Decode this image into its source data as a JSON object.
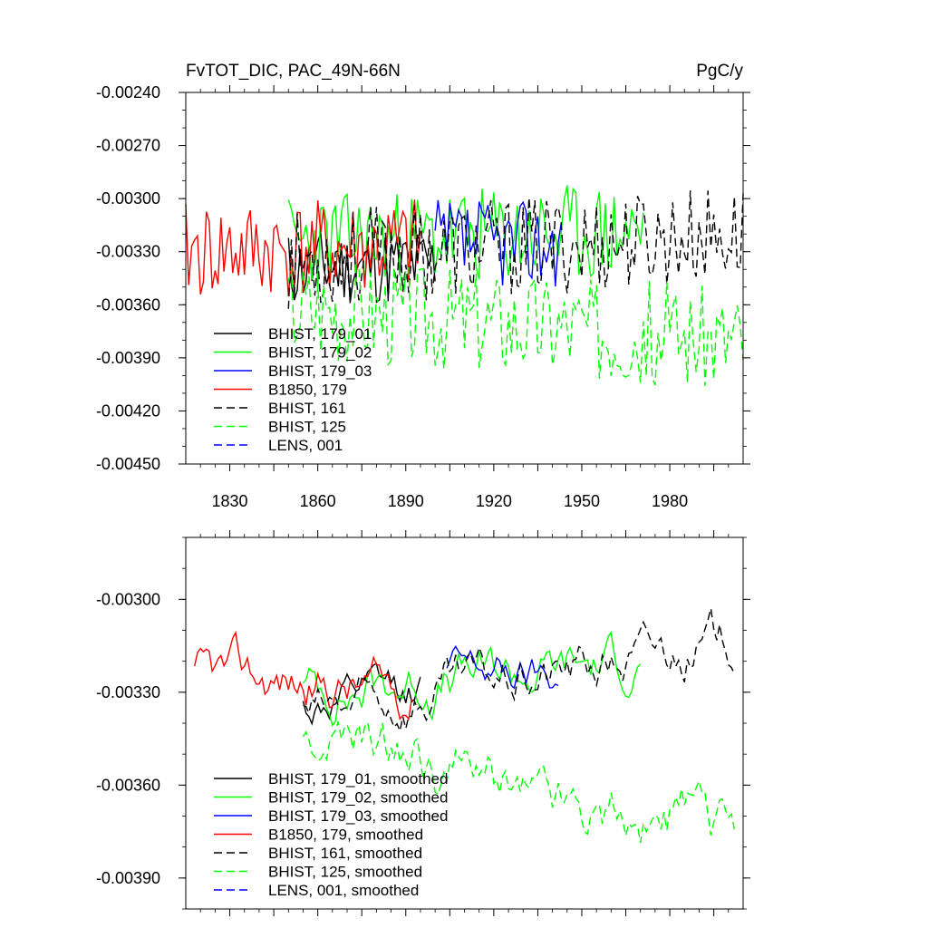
{
  "chart_data": [
    {
      "type": "line",
      "title": "FvTOT_DIC, PAC_49N-66N",
      "units": "PgC/y",
      "ylim": [
        -0.0045,
        -0.0024
      ],
      "yticks": [
        -0.0024,
        -0.0027,
        -0.003,
        -0.0033,
        -0.0036,
        -0.0039,
        -0.0042,
        -0.0045
      ],
      "ytick_labels": [
        "-0.00240",
        "-0.00270",
        "-0.00300",
        "-0.00330",
        "-0.00360",
        "-0.00390",
        "-0.00420",
        "-0.00450"
      ],
      "xlim": [
        1815,
        2005
      ],
      "xticks": [
        1830,
        1860,
        1890,
        1920,
        1950,
        1980
      ],
      "xtick_labels": [
        "1830",
        "1860",
        "1890",
        "1920",
        "1950",
        "1980"
      ],
      "legend_location": "lower-left",
      "series": [
        {
          "name": "BHIST, 179_01",
          "color": "#000000",
          "dash": "solid",
          "start": 1850,
          "end": 1900,
          "seed": 11,
          "base": -0.0034,
          "amp": 0.00022,
          "trend": 3e-05,
          "n": 51
        },
        {
          "name": "BHIST, 179_02",
          "color": "#00ff00",
          "dash": "solid",
          "start": 1850,
          "end": 1971,
          "seed": 23,
          "base": -0.00325,
          "amp": 0.00028,
          "trend": 6e-05,
          "n": 122
        },
        {
          "name": "BHIST, 179_03",
          "color": "#0000ff",
          "dash": "solid",
          "start": 1900,
          "end": 1943,
          "seed": 37,
          "base": -0.00325,
          "amp": 0.00025,
          "trend": 0.0,
          "n": 44
        },
        {
          "name": "B1850, 179",
          "color": "#ff0000",
          "dash": "solid",
          "start": 1815,
          "end": 1895,
          "seed": 41,
          "base": -0.0033,
          "amp": 0.00028,
          "trend": 2e-05,
          "n": 81
        },
        {
          "name": "BHIST, 161",
          "color": "#000000",
          "dash": "dashed",
          "start": 1850,
          "end": 2005,
          "seed": 53,
          "base": -0.00335,
          "amp": 0.00028,
          "trend": 0.00015,
          "n": 156
        },
        {
          "name": "BHIST, 125",
          "color": "#00ff00",
          "dash": "dashed",
          "start": 1850,
          "end": 2005,
          "seed": 67,
          "base": -0.0036,
          "amp": 0.0003,
          "trend": -0.0002,
          "n": 156
        },
        {
          "name": "LENS, 001",
          "color": "#0000ff",
          "dash": "dashed",
          "start": null,
          "end": null,
          "seed": 0,
          "base": 0,
          "amp": 0,
          "trend": 0,
          "n": 0
        }
      ]
    },
    {
      "type": "line",
      "title": "",
      "ylim": [
        -0.004,
        -0.0028
      ],
      "yticks": [
        -0.003,
        -0.0033,
        -0.0036,
        -0.0039
      ],
      "ytick_labels": [
        "-0.00300",
        "-0.00330",
        "-0.00360",
        "-0.00390"
      ],
      "xlim": [
        1815,
        2005
      ],
      "legend_location": "lower-left",
      "series": [
        {
          "name": "BHIST, 179_01, smoothed",
          "color": "#000000",
          "dash": "solid",
          "start": 1855,
          "end": 1895,
          "seed": 12,
          "base": -0.00335,
          "amp": 0.0001,
          "trend": 5e-05,
          "n": 41
        },
        {
          "name": "BHIST, 179_02, smoothed",
          "color": "#00ff00",
          "dash": "solid",
          "start": 1855,
          "end": 1970,
          "seed": 24,
          "base": -0.0033,
          "amp": 0.00012,
          "trend": 0.0001,
          "n": 116
        },
        {
          "name": "BHIST, 179_03, smoothed",
          "color": "#0000ff",
          "dash": "solid",
          "start": 1904,
          "end": 1942,
          "seed": 38,
          "base": -0.00322,
          "amp": 0.0001,
          "trend": -4e-05,
          "n": 39
        },
        {
          "name": "B1850, 179, smoothed",
          "color": "#ff0000",
          "dash": "solid",
          "start": 1818,
          "end": 1892,
          "seed": 42,
          "base": -0.00325,
          "amp": 0.00012,
          "trend": -5e-05,
          "n": 75
        },
        {
          "name": "BHIST, 161, smoothed",
          "color": "#000000",
          "dash": "dashed",
          "start": 1855,
          "end": 2002,
          "seed": 54,
          "base": -0.00338,
          "amp": 0.00012,
          "trend": 0.00025,
          "n": 148
        },
        {
          "name": "BHIST, 125, smoothed",
          "color": "#00ff00",
          "dash": "dashed",
          "start": 1855,
          "end": 2002,
          "seed": 68,
          "base": -0.00345,
          "amp": 0.00014,
          "trend": -0.0003,
          "n": 148
        },
        {
          "name": "LENS, 001, smoothed",
          "color": "#0000ff",
          "dash": "dashed",
          "start": null,
          "end": null,
          "seed": 0,
          "base": 0,
          "amp": 0,
          "trend": 0,
          "n": 0
        }
      ]
    }
  ]
}
